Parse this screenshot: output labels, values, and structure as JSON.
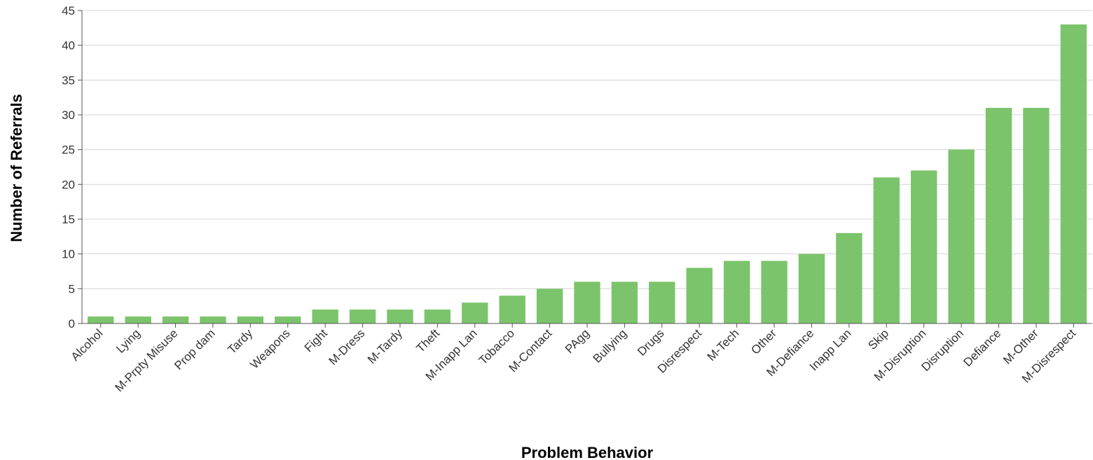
{
  "chart_data": {
    "type": "bar",
    "title": "",
    "xlabel": "Problem Behavior",
    "ylabel": "Number of Referrals",
    "ylim": [
      0,
      45
    ],
    "yticks": [
      0,
      5,
      10,
      15,
      20,
      25,
      30,
      35,
      40,
      45
    ],
    "grid": true,
    "legend": "none",
    "bar_color": "#7bc46b",
    "categories": [
      "Alcohol",
      "Lying",
      "M-Prpty Misuse",
      "Prop dam",
      "Tardy",
      "Weapons",
      "Fight",
      "M-Dress",
      "M-Tardy",
      "Theft",
      "M-Inapp Lan",
      "Tobacco",
      "M-Contact",
      "PAgg",
      "Bullying",
      "Drugs",
      "Disrespect",
      "M-Tech",
      "Other",
      "M-Defiance",
      "Inapp Lan",
      "Skip",
      "M-Disruption",
      "Disruption",
      "Defiance",
      "M-Other",
      "M-Disrespect"
    ],
    "values": [
      1,
      1,
      1,
      1,
      1,
      1,
      2,
      2,
      2,
      2,
      3,
      4,
      5,
      6,
      6,
      6,
      8,
      9,
      9,
      10,
      13,
      21,
      22,
      25,
      31,
      31,
      43
    ]
  }
}
